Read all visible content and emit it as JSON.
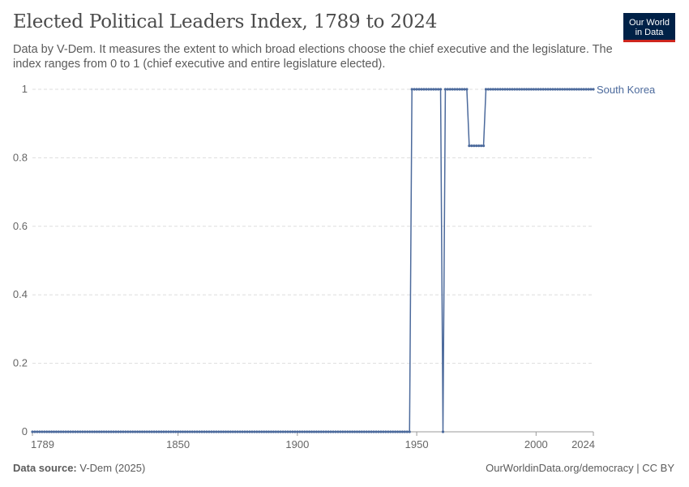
{
  "header": {
    "title": "Elected Political Leaders Index, 1789 to 2024",
    "subtitle": "Data by V-Dem. It measures the extent to which broad elections choose the chief executive and the legislature. The index ranges from 0 to 1 (chief executive and entire legislature elected)."
  },
  "logo": {
    "line1": "Our World",
    "line2": "in Data",
    "bg_color": "#002147",
    "accent_color": "#ce261e"
  },
  "footer": {
    "source_label": "Data source:",
    "source_value": "V-Dem (2025)",
    "link": "OurWorldinData.org/democracy | CC BY"
  },
  "chart_data": {
    "type": "line",
    "title": "Elected Political Leaders Index, 1789 to 2024",
    "xlabel": "",
    "ylabel": "",
    "xlim": [
      1789,
      2024
    ],
    "ylim": [
      0,
      1
    ],
    "x_ticks": [
      1789,
      1850,
      1900,
      1950,
      2000,
      2024
    ],
    "y_ticks": [
      0,
      0.2,
      0.4,
      0.6,
      0.8,
      1
    ],
    "grid": "horizontal dashed",
    "series": [
      {
        "name": "South Korea",
        "color": "#4c6a9c",
        "segments": [
          {
            "x_start": 1789,
            "x_end": 1947,
            "value": 0
          },
          {
            "x_start": 1948,
            "x_end": 1960,
            "value": 1
          },
          {
            "x_start": 1961,
            "x_end": 1961,
            "value": 0
          },
          {
            "x_start": 1962,
            "x_end": 1971,
            "value": 1
          },
          {
            "x_start": 1972,
            "x_end": 1978,
            "value": 0.835
          },
          {
            "x_start": 1979,
            "x_end": 2024,
            "value": 1
          }
        ]
      }
    ]
  }
}
